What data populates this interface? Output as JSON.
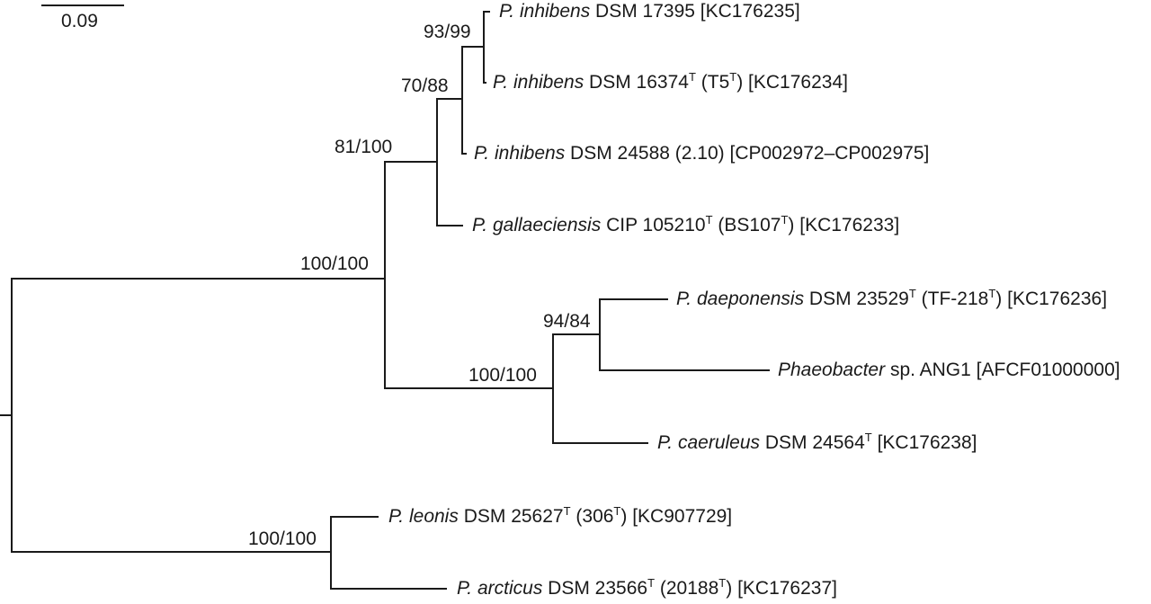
{
  "scale_bar": {
    "label": "0.09"
  },
  "tips": {
    "t1": {
      "genus": "P. inhibens",
      "strain": "DSM 17395",
      "accession": "[KC176235]"
    },
    "t2": {
      "genus": "P. inhibens",
      "strain": "DSM 16374",
      "type_mark": "T",
      "alt": "(T5",
      "alt_type_mark": "T",
      "alt_close": ")",
      "accession": "[KC176234]"
    },
    "t3": {
      "genus": "P. inhibens",
      "strain": "DSM 24588 (2.10)",
      "accession": "[CP002972–CP002975]"
    },
    "t4": {
      "genus": "P. gallaeciensis",
      "strain": "CIP 105210",
      "type_mark": "T",
      "alt": "(BS107",
      "alt_type_mark": "T",
      "alt_close": ")",
      "accession": "[KC176233]"
    },
    "t5": {
      "genus": "P. daeponensis",
      "strain": "DSM 23529",
      "type_mark": "T",
      "alt": "(TF-218",
      "alt_type_mark": "T",
      "alt_close": ")",
      "accession": "[KC176236]"
    },
    "t6": {
      "genus": "Phaeobacter",
      "strain": "sp. ANG1",
      "accession": "[AFCF01000000]"
    },
    "t7": {
      "genus": "P. caeruleus",
      "strain": "DSM 24564",
      "type_mark": "T",
      "accession": "[KC176238]"
    },
    "t8": {
      "genus": "P. leonis",
      "strain": "DSM 25627",
      "type_mark": "T",
      "alt": "(306",
      "alt_type_mark": "T",
      "alt_close": ")",
      "accession": "[KC907729]"
    },
    "t9": {
      "genus": "P. arcticus",
      "strain": "DSM 23566",
      "type_mark": "T",
      "alt": "(20188",
      "alt_type_mark": "T",
      "alt_close": ")",
      "accession": "[KC176237]"
    }
  },
  "support_values": {
    "n_inhibens_pair": "93/99",
    "n_inhibens_trio": "70/88",
    "n_inhibens_gallae": "81/100",
    "n_upper_clade": "100/100",
    "n_daep_ang1": "94/84",
    "n_daep_caer": "100/100",
    "n_leonis_arcticus": "100/100"
  }
}
